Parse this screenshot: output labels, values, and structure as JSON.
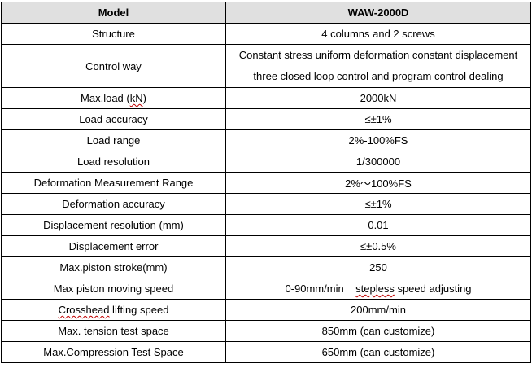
{
  "header": {
    "col1": "Model",
    "col2": "WAW-2000D"
  },
  "rows": [
    {
      "label": "Structure",
      "value": "4  columns  and  2  screws"
    },
    {
      "label": "Control way",
      "value_lines": [
        "Constant stress uniform deformation constant displacement",
        "three closed loop control and program control dealing"
      ]
    },
    {
      "label_pre": "Max.load (",
      "label_wavy": "kN",
      "label_post": ")",
      "value": "2000kN"
    },
    {
      "label": "Load accuracy",
      "value": "≤±1%"
    },
    {
      "label": "Load range",
      "value": "2%-100%FS"
    },
    {
      "label": "Load resolution",
      "value": "1/300000"
    },
    {
      "label": "Deformation Measurement Range",
      "value": "2%～100%FS"
    },
    {
      "label": "Deformation accuracy",
      "value": "≤±1%"
    },
    {
      "label": "Displacement resolution (mm)",
      "value": "0.01"
    },
    {
      "label": "Displacement error",
      "value": "≤±0.5%"
    },
    {
      "label": "Max.piston stroke(mm)",
      "value": "250"
    },
    {
      "label": "Max piston moving speed",
      "value_pre": "0-90mm/min    ",
      "value_wavy": "stepless",
      "value_post": " speed adjusting"
    },
    {
      "label_wavy": "Crosshead",
      "label_post": " lifting speed",
      "value": "200mm/min"
    },
    {
      "label": "Max. tension test space",
      "value": "850mm (can customize)"
    },
    {
      "label": "Max.Compression Test Space",
      "value": "650mm (can customize)"
    }
  ]
}
